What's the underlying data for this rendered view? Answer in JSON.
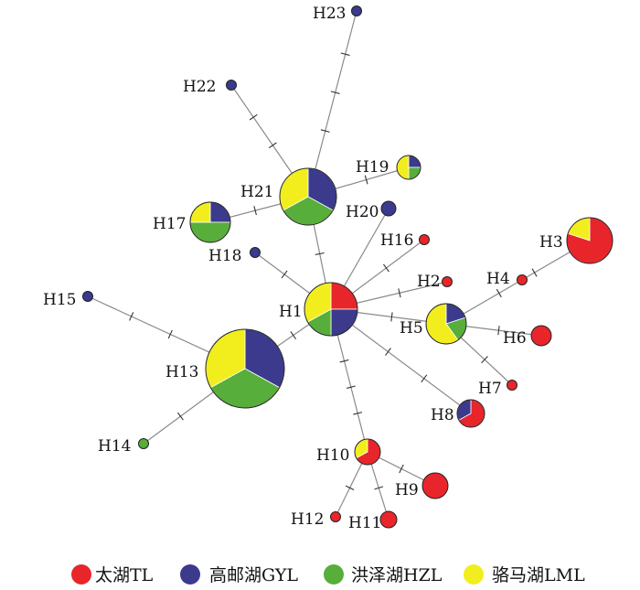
{
  "colors": {
    "TL": "#e8252a",
    "GYL": "#3b3a8c",
    "HZL": "#57ae3a",
    "LML": "#f2ee1e",
    "edge": "#8a8a8a",
    "outline": "#222222"
  },
  "legend": [
    {
      "key": "TL",
      "label": "太湖TL"
    },
    {
      "key": "GYL",
      "label": "高邮湖GYL"
    },
    {
      "key": "HZL",
      "label": "洪泽湖HZL"
    },
    {
      "key": "LML",
      "label": "骆马湖LML"
    }
  ],
  "haplotypes": [
    {
      "id": "H1",
      "label": "H1",
      "composition": {
        "TL": 0.25,
        "GYL": 0.25,
        "HZL": 0.17,
        "LML": 0.33
      }
    },
    {
      "id": "H2",
      "label": "H2",
      "composition": {
        "TL": 1
      }
    },
    {
      "id": "H3",
      "label": "H3",
      "composition": {
        "TL": 0.8,
        "LML": 0.2
      }
    },
    {
      "id": "H4",
      "label": "H4",
      "composition": {
        "TL": 1
      }
    },
    {
      "id": "H5",
      "label": "H5",
      "composition": {
        "GYL": 0.2,
        "HZL": 0.2,
        "LML": 0.6
      }
    },
    {
      "id": "H6",
      "label": "H6",
      "composition": {
        "TL": 1
      }
    },
    {
      "id": "H7",
      "label": "H7",
      "composition": {
        "TL": 1
      }
    },
    {
      "id": "H8",
      "label": "H8",
      "composition": {
        "TL": 0.67,
        "GYL": 0.33
      }
    },
    {
      "id": "H9",
      "label": "H9",
      "composition": {
        "TL": 1
      }
    },
    {
      "id": "H10",
      "label": "H10",
      "composition": {
        "TL": 0.67,
        "LML": 0.33
      }
    },
    {
      "id": "H11",
      "label": "H11",
      "composition": {
        "TL": 1
      }
    },
    {
      "id": "H12",
      "label": "H12",
      "composition": {
        "TL": 1
      }
    },
    {
      "id": "H13",
      "label": "H13",
      "composition": {
        "LML": 0.33,
        "GYL": 0.33,
        "HZL": 0.34
      }
    },
    {
      "id": "H14",
      "label": "H14",
      "composition": {
        "HZL": 1
      }
    },
    {
      "id": "H15",
      "label": "H15",
      "composition": {
        "GYL": 1
      }
    },
    {
      "id": "H16",
      "label": "H16",
      "composition": {
        "TL": 1
      }
    },
    {
      "id": "H17",
      "label": "H17",
      "composition": {
        "LML": 0.25,
        "GYL": 0.25,
        "HZL": 0.5
      }
    },
    {
      "id": "H18",
      "label": "H18",
      "composition": {
        "GYL": 1
      }
    },
    {
      "id": "H19",
      "label": "H19",
      "composition": {
        "LML": 0.5,
        "GYL": 0.25,
        "HZL": 0.25
      }
    },
    {
      "id": "H20",
      "label": "H20",
      "composition": {
        "GYL": 1
      }
    },
    {
      "id": "H21",
      "label": "H21",
      "composition": {
        "LML": 0.33,
        "GYL": 0.33,
        "HZL": 0.34
      }
    },
    {
      "id": "H22",
      "label": "H22",
      "composition": {
        "GYL": 1
      }
    },
    {
      "id": "H23",
      "label": "H23",
      "composition": {
        "GYL": 1
      }
    }
  ],
  "links": [
    {
      "from": "H1",
      "to": "H13",
      "steps": 1
    },
    {
      "from": "H1",
      "to": "H21",
      "steps": 1
    },
    {
      "from": "H1",
      "to": "H18",
      "steps": 1
    },
    {
      "from": "H1",
      "to": "H16",
      "steps": 1
    },
    {
      "from": "H1",
      "to": "H2",
      "steps": 1
    },
    {
      "from": "H1",
      "to": "H5",
      "steps": 1
    },
    {
      "from": "H1",
      "to": "H8",
      "steps": 2
    },
    {
      "from": "H1",
      "to": "H10",
      "steps": 3
    },
    {
      "from": "H5",
      "to": "H3",
      "steps": 2
    },
    {
      "from": "H5",
      "to": "H6",
      "steps": 1
    },
    {
      "from": "H5",
      "to": "H7",
      "steps": 1
    },
    {
      "from": "H13",
      "to": "H15",
      "steps": 2
    },
    {
      "from": "H13",
      "to": "H14",
      "steps": 1
    },
    {
      "from": "H21",
      "to": "H17",
      "steps": 1
    },
    {
      "from": "H21",
      "to": "H19",
      "steps": 1
    },
    {
      "from": "H21",
      "to": "H22",
      "steps": 2
    },
    {
      "from": "H21",
      "to": "H23",
      "steps": 3
    },
    {
      "from": "H10",
      "to": "H9",
      "steps": 1
    },
    {
      "from": "H10",
      "to": "H11",
      "steps": 1
    },
    {
      "from": "H10",
      "to": "H12",
      "steps": 1
    }
  ]
}
